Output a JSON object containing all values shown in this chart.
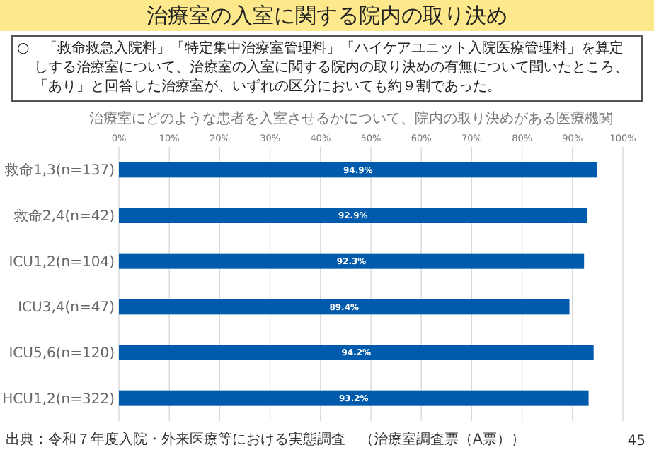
{
  "chart_data": {
    "type": "bar",
    "orientation": "horizontal",
    "title": "治療室の入室に関する院内の取り決め",
    "subtitle": "治療室にどのような患者を入室させるかについて、院内の取り決めがある医療機関",
    "annotations": [
      "○　「救命救急入院料」「特定集中治療室管理料」「ハイケアユニット入院医療管理料」を算定しする治療室について、治療室の入室に関する院内の取り決めの有無について聞いたところ、「あり」と回答した治療室が、いずれの区分においても約９割であった。",
      "出典：令和７年度入院・外来医療等における実態調査　（治療室調査票（A票））",
      "45"
    ],
    "categories": [
      "救命1,3(n=137)",
      "救命2,4(n=42)",
      "ICU1,2(n=104)",
      "ICU3,4(n=47)",
      "ICU5,6(n=120)",
      "HCU1,2(n=322)"
    ],
    "values": [
      94.9,
      92.9,
      92.3,
      89.4,
      94.2,
      93.2
    ],
    "value_labels": [
      "94.9%",
      "92.9%",
      "92.3%",
      "89.4%",
      "94.2%",
      "93.2%"
    ],
    "color": "#005bac",
    "xlim": [
      0,
      100
    ],
    "xticks": [
      {
        "value": 0,
        "label": "0%"
      },
      {
        "value": 10,
        "label": "10%"
      },
      {
        "value": 20,
        "label": "20%"
      },
      {
        "value": 30,
        "label": "30%"
      },
      {
        "value": 40,
        "label": "40%"
      },
      {
        "value": 50,
        "label": "50%"
      },
      {
        "value": 60,
        "label": "60%"
      },
      {
        "value": 70,
        "label": "70%"
      },
      {
        "value": 80,
        "label": "80%"
      },
      {
        "value": 90,
        "label": "90%"
      },
      {
        "value": 100,
        "label": "100%"
      }
    ],
    "grid": "x"
  }
}
